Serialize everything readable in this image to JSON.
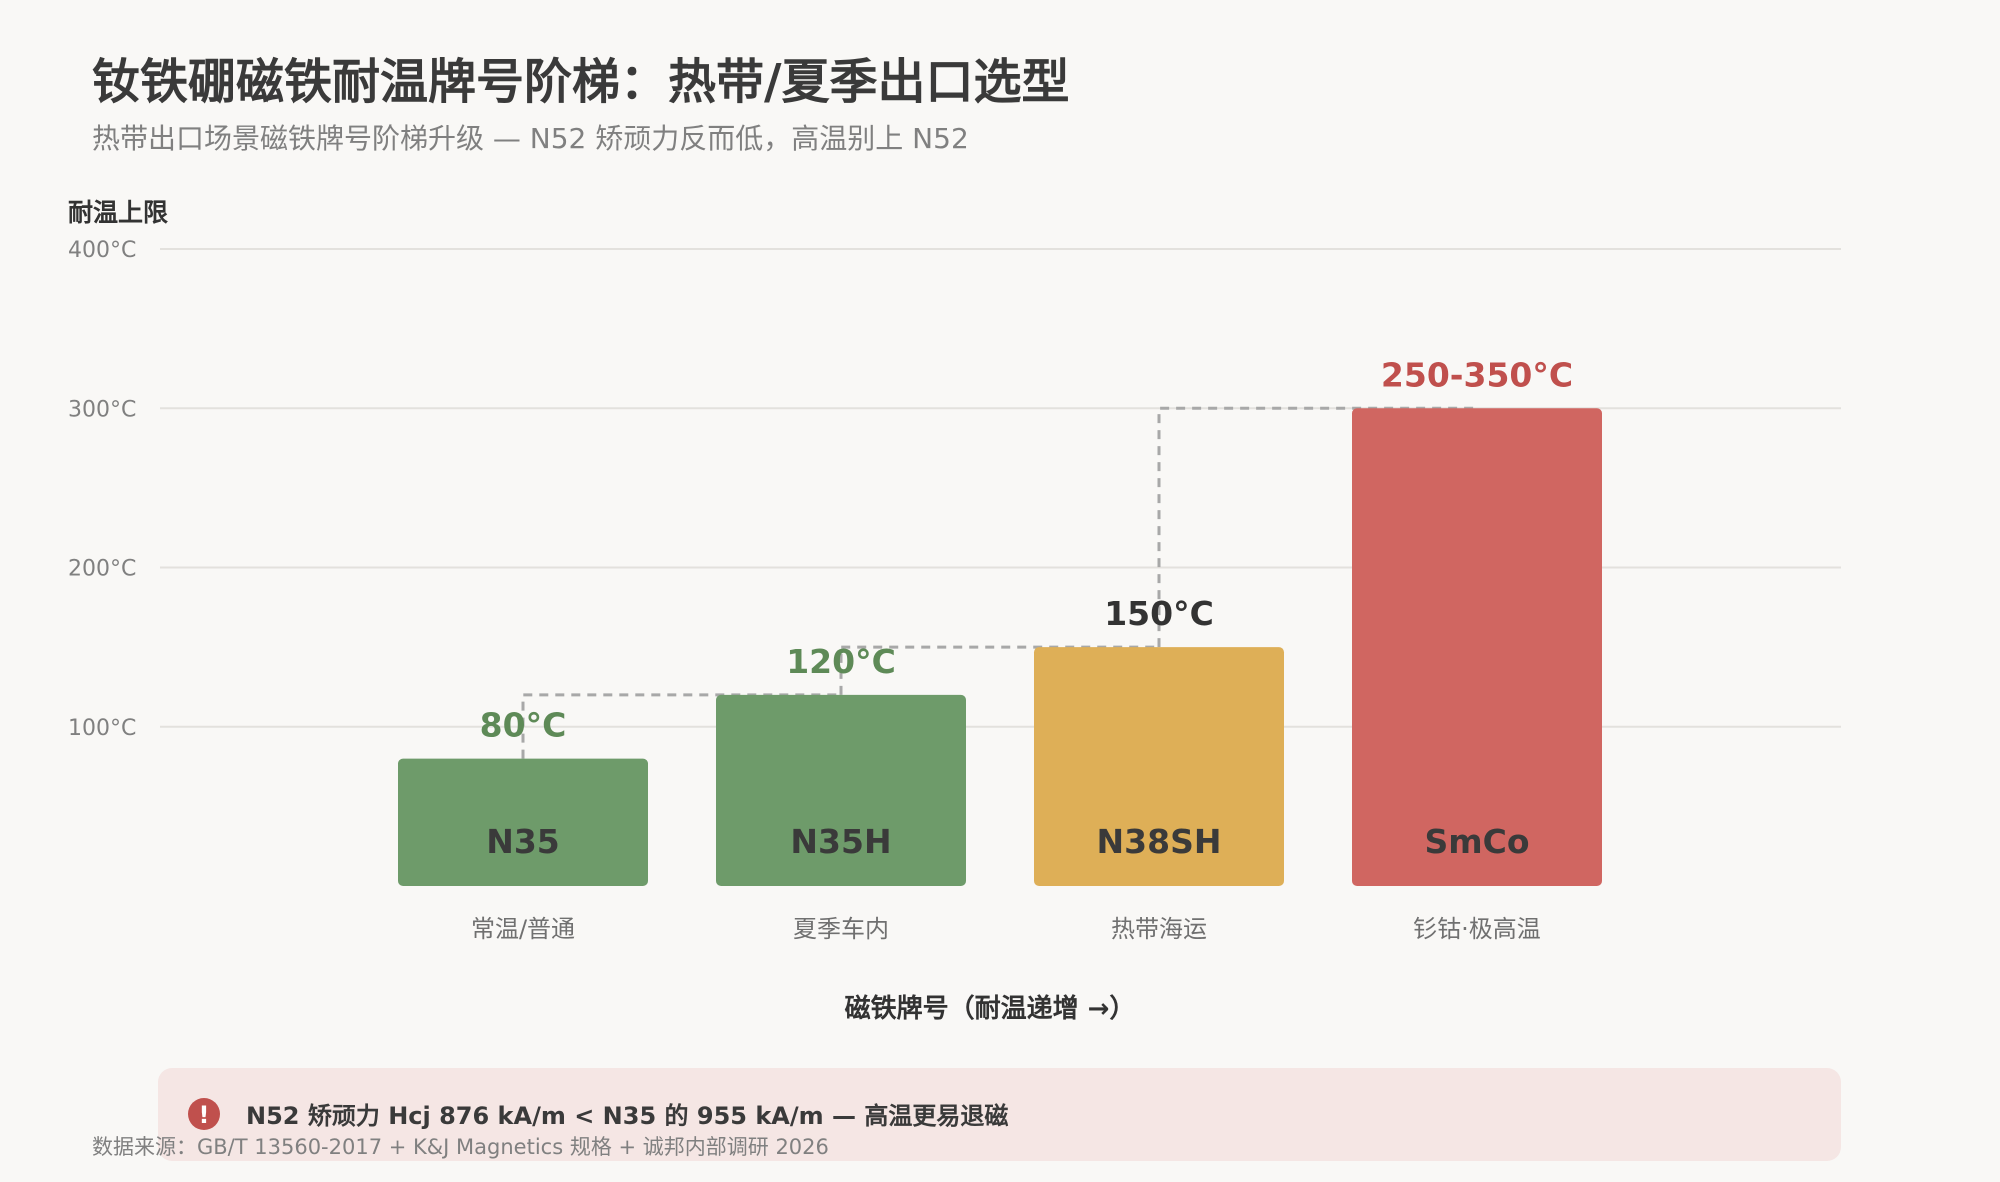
{
  "title": "钕铁硼磁铁耐温牌号阶梯：热带/夏季出口选型",
  "subtitle": "热带出口场景磁铁牌号阶梯升级 — N52 矫顽力反而低，高温别上 N52",
  "warning": {
    "icon": "!",
    "text": "N52 矫顽力 Hcj 876 kA/m < N35 的 955 kA/m — 高温更易退磁",
    "color": "#c0504d"
  },
  "source": "数据来源：GB/T 13560-2017 + K&J Magnetics 规格 + 诚邦内部调研 2026",
  "chart_data": {
    "type": "bar",
    "ylabel": "耐温上限",
    "xlabel": "磁铁牌号（耐温递增 →）",
    "ylim": [
      0,
      400
    ],
    "yticks": [
      100,
      200,
      300,
      400
    ],
    "ytick_labels": [
      "100°C",
      "200°C",
      "300°C",
      "400°C"
    ],
    "grid": true,
    "categories": [
      "N35",
      "N35H",
      "N38SH",
      "SmCo"
    ],
    "descriptions": [
      "常温/普通",
      "夏季车内",
      "热带海运",
      "钐钴·极高温"
    ],
    "values": [
      80,
      120,
      150,
      300
    ],
    "value_labels": [
      "80°C",
      "120°C",
      "150°C",
      "250-350°C"
    ],
    "bar_colors": [
      "#6e9b6a",
      "#6e9b6a",
      "#deaf57",
      "#d06661"
    ],
    "label_colors": [
      "#5e8a57",
      "#5e8a57",
      "#333333",
      "#c0504d"
    ]
  }
}
